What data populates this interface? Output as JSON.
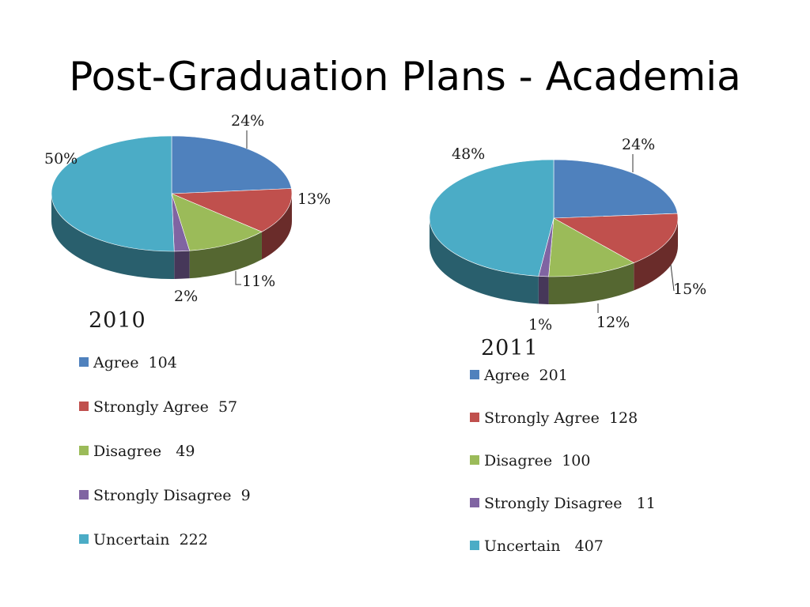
{
  "title": "Post-Graduation Plans - Academia",
  "chart_data": [
    {
      "type": "pie",
      "title": "2010",
      "categories": [
        "Agree",
        "Strongly Agree",
        "Disagree",
        "Strongly Disagree",
        "Uncertain"
      ],
      "values": [
        104,
        57,
        49,
        9,
        222
      ],
      "percent_labels": [
        "24%",
        "13%",
        "11%",
        "2%",
        "50%"
      ],
      "legend_labels": [
        "Agree  104",
        "Strongly Agree  57",
        "Disagree   49",
        "Strongly Disagree  9",
        "Uncertain  222"
      ],
      "colors": [
        "#4f81bd",
        "#c0504d",
        "#9bbb59",
        "#8064a2",
        "#4bacc6"
      ],
      "style": "3d",
      "legend_position": "bottom"
    },
    {
      "type": "pie",
      "title": "2011",
      "categories": [
        "Agree",
        "Strongly Agree",
        "Disagree",
        "Strongly Disagree",
        "Uncertain"
      ],
      "values": [
        201,
        128,
        100,
        11,
        407
      ],
      "percent_labels": [
        "24%",
        "15%",
        "12%",
        "1%",
        "48%"
      ],
      "legend_labels": [
        "Agree  201",
        "Strongly Agree  128",
        "Disagree  100",
        "Strongly Disagree   11",
        "Uncertain   407"
      ],
      "colors": [
        "#4f81bd",
        "#c0504d",
        "#9bbb59",
        "#8064a2",
        "#4bacc6"
      ],
      "style": "3d",
      "legend_position": "bottom"
    }
  ]
}
